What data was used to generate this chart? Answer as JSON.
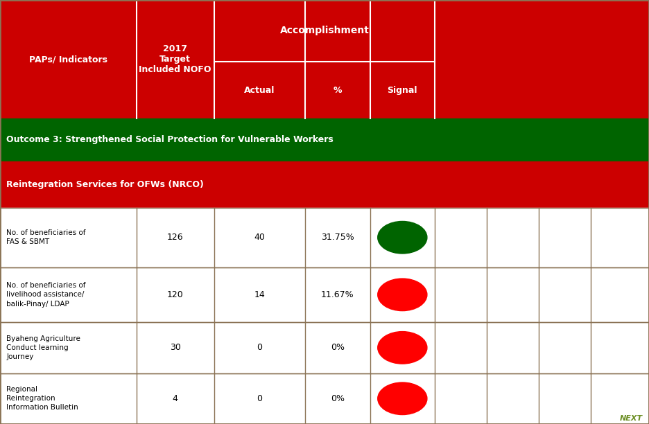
{
  "header_bg": "#CC0000",
  "header_text_color": "#FFFFFF",
  "outcome_bg": "#006400",
  "outcome_text_color": "#FFFFFF",
  "section_bg": "#CC0000",
  "section_text_color": "#FFFFFF",
  "row_bg": "#FFFFFF",
  "row_border": "#8B7355",
  "next_color": "#6B8E23",
  "outcome_text": "Outcome 3: Strengthened Social Protection for Vulnerable Workers",
  "section_text": "Reintegration Services for OFWs (NRCO)",
  "rows": [
    {
      "indicator": "No. of beneficiaries of\nFAS & SBMT",
      "target": "126",
      "actual": "40",
      "pct": "31.75%",
      "signal_color": "#006400"
    },
    {
      "indicator": "No. of beneficiaries of\nlivelihood assistance/\nbalik-Pinay/ LDAP",
      "target": "120",
      "actual": "14",
      "pct": "11.67%",
      "signal_color": "#FF0000"
    },
    {
      "indicator": "Byaheng Agriculture\nConduct learning\nJourney",
      "target": "30",
      "actual": "0",
      "pct": "0%",
      "signal_color": "#FF0000"
    },
    {
      "indicator": "Regional\nReintegration\nInformation Bulletin",
      "target": "4",
      "actual": "0",
      "pct": "0%",
      "signal_color": "#FF0000"
    }
  ]
}
